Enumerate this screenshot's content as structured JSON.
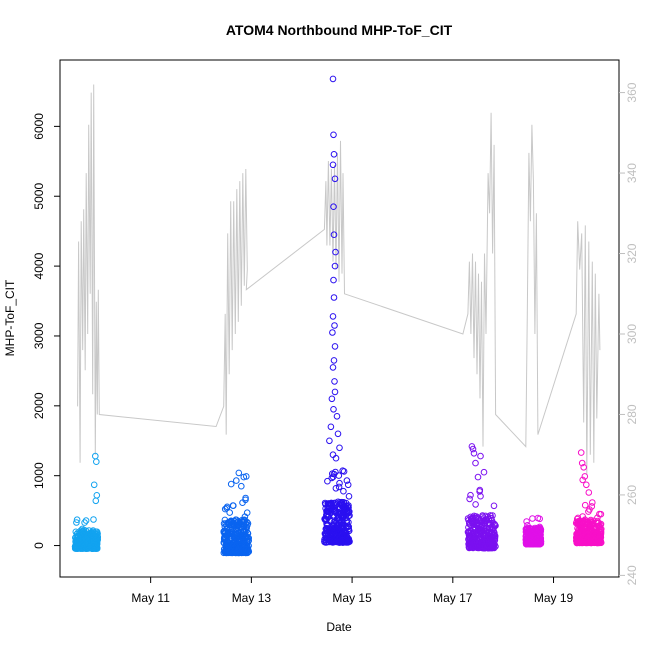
{
  "chart_data": {
    "type": "scatter",
    "title": "ATOM4 Northbound MHP-ToF_CIT",
    "xlabel": "Date",
    "ylabel": "MHP-ToF_CIT",
    "x_tick_labels": [
      "May 11",
      "May 13",
      "May 15",
      "May 17",
      "May 19"
    ],
    "x_tick_days": [
      11,
      13,
      15,
      17,
      19
    ],
    "xlim_days": [
      9.2,
      20.3
    ],
    "ylim": [
      -450,
      6950
    ],
    "y_ticks": [
      0,
      1000,
      2000,
      3000,
      4000,
      5000,
      6000
    ],
    "y2lim": [
      239.6,
      368.1
    ],
    "y2_ticks": [
      240,
      260,
      280,
      300,
      320,
      340,
      360
    ],
    "scatter_groups": [
      {
        "day_start": 9.5,
        "day_end": 9.95,
        "color": "#12a3f0",
        "y_min": -90,
        "y_max": 420,
        "outliers": [
          [
            9.9,
            1280
          ],
          [
            9.92,
            1200
          ],
          [
            9.88,
            870
          ],
          [
            9.93,
            720
          ],
          [
            9.91,
            640
          ]
        ]
      },
      {
        "day_start": 12.45,
        "day_end": 12.95,
        "color": "#0a64f0",
        "y_min": -190,
        "y_max": 760,
        "outliers": [
          [
            12.75,
            1040
          ],
          [
            12.9,
            990
          ],
          [
            12.85,
            980
          ],
          [
            12.7,
            930
          ],
          [
            12.6,
            880
          ],
          [
            12.8,
            850
          ]
        ]
      },
      {
        "day_start": 14.45,
        "day_end": 14.95,
        "color": "#2a10f0",
        "y_min": -60,
        "y_max": 1100,
        "outliers": [
          [
            14.62,
            6680
          ],
          [
            14.63,
            5880
          ],
          [
            14.64,
            5600
          ],
          [
            14.62,
            5450
          ],
          [
            14.66,
            5250
          ],
          [
            14.63,
            4850
          ],
          [
            14.64,
            4450
          ],
          [
            14.67,
            4200
          ],
          [
            14.66,
            4000
          ],
          [
            14.63,
            3800
          ],
          [
            14.64,
            3550
          ],
          [
            14.62,
            3280
          ],
          [
            14.65,
            3150
          ],
          [
            14.61,
            3050
          ],
          [
            14.66,
            2850
          ],
          [
            14.64,
            2650
          ],
          [
            14.62,
            2550
          ],
          [
            14.65,
            2350
          ],
          [
            14.66,
            2200
          ],
          [
            14.6,
            2100
          ],
          [
            14.63,
            1950
          ],
          [
            14.7,
            1850
          ],
          [
            14.58,
            1700
          ],
          [
            14.72,
            1600
          ],
          [
            14.55,
            1500
          ],
          [
            14.75,
            1400
          ],
          [
            14.62,
            1300
          ],
          [
            14.68,
            1250
          ]
        ]
      },
      {
        "day_start": 17.3,
        "day_end": 17.85,
        "color": "#7b10f0",
        "y_min": -120,
        "y_max": 800,
        "outliers": [
          [
            17.38,
            1420
          ],
          [
            17.4,
            1380
          ],
          [
            17.42,
            1320
          ],
          [
            17.55,
            1280
          ],
          [
            17.45,
            1180
          ],
          [
            17.62,
            1050
          ],
          [
            17.5,
            980
          ]
        ]
      },
      {
        "day_start": 18.45,
        "day_end": 18.75,
        "color": "#e010e8",
        "y_min": -20,
        "y_max": 440,
        "outliers": []
      },
      {
        "day_start": 19.45,
        "day_end": 19.95,
        "color": "#f810c8",
        "y_min": -20,
        "y_max": 620,
        "outliers": [
          [
            19.55,
            1330
          ],
          [
            19.57,
            1180
          ],
          [
            19.6,
            1120
          ],
          [
            19.62,
            990
          ],
          [
            19.58,
            940
          ],
          [
            19.65,
            870
          ],
          [
            19.7,
            760
          ]
        ]
      }
    ],
    "secondary_line": {
      "color": "#c8c8c8",
      "axis": "right",
      "points": [
        [
          9.55,
          282
        ],
        [
          9.57,
          323
        ],
        [
          9.6,
          268
        ],
        [
          9.62,
          328
        ],
        [
          9.65,
          296
        ],
        [
          9.67,
          331
        ],
        [
          9.7,
          291
        ],
        [
          9.72,
          340
        ],
        [
          9.75,
          300
        ],
        [
          9.77,
          352
        ],
        [
          9.8,
          310
        ],
        [
          9.82,
          360
        ],
        [
          9.85,
          285
        ],
        [
          9.87,
          362
        ],
        [
          9.9,
          270
        ],
        [
          9.92,
          308
        ],
        [
          9.94,
          280
        ],
        [
          9.96,
          311
        ],
        [
          9.98,
          280
        ],
        [
          12.3,
          277
        ],
        [
          12.45,
          282
        ],
        [
          12.48,
          305
        ],
        [
          12.5,
          275
        ],
        [
          12.53,
          325
        ],
        [
          12.56,
          290
        ],
        [
          12.59,
          333
        ],
        [
          12.62,
          296
        ],
        [
          12.65,
          333
        ],
        [
          12.68,
          300
        ],
        [
          12.71,
          336
        ],
        [
          12.74,
          303
        ],
        [
          12.77,
          338
        ],
        [
          12.8,
          307
        ],
        [
          12.83,
          340
        ],
        [
          12.86,
          312
        ],
        [
          12.89,
          341
        ],
        [
          12.92,
          316
        ],
        [
          12.9,
          311
        ],
        [
          14.45,
          326
        ],
        [
          14.48,
          338
        ],
        [
          14.5,
          322
        ],
        [
          14.53,
          343
        ],
        [
          14.56,
          322
        ],
        [
          14.59,
          341
        ],
        [
          14.62,
          318
        ],
        [
          14.65,
          342
        ],
        [
          14.68,
          316
        ],
        [
          14.71,
          345
        ],
        [
          14.74,
          313
        ],
        [
          14.77,
          348
        ],
        [
          14.8,
          315
        ],
        [
          14.82,
          340
        ],
        [
          14.85,
          310
        ],
        [
          17.2,
          300
        ],
        [
          17.3,
          305
        ],
        [
          17.33,
          318
        ],
        [
          17.36,
          300
        ],
        [
          17.39,
          320
        ],
        [
          17.42,
          294
        ],
        [
          17.45,
          318
        ],
        [
          17.48,
          290
        ],
        [
          17.51,
          315
        ],
        [
          17.54,
          284
        ],
        [
          17.57,
          313
        ],
        [
          17.6,
          272
        ],
        [
          17.63,
          320
        ],
        [
          17.66,
          300
        ],
        [
          17.7,
          340
        ],
        [
          17.73,
          330
        ],
        [
          17.76,
          355
        ],
        [
          17.79,
          320
        ],
        [
          17.82,
          347
        ],
        [
          17.85,
          280
        ],
        [
          18.45,
          272
        ],
        [
          18.48,
          305
        ],
        [
          18.51,
          345
        ],
        [
          18.54,
          328
        ],
        [
          18.57,
          352
        ],
        [
          18.6,
          338
        ],
        [
          18.63,
          300
        ],
        [
          18.66,
          330
        ],
        [
          18.69,
          275
        ],
        [
          19.45,
          305
        ],
        [
          19.48,
          328
        ],
        [
          19.52,
          316
        ],
        [
          19.56,
          325
        ],
        [
          19.6,
          278
        ],
        [
          19.63,
          327
        ],
        [
          19.66,
          265
        ],
        [
          19.7,
          323
        ],
        [
          19.73,
          270
        ],
        [
          19.77,
          318
        ],
        [
          19.8,
          268
        ],
        [
          19.83,
          315
        ],
        [
          19.86,
          279
        ],
        [
          19.9,
          310
        ],
        [
          19.92,
          296
        ]
      ]
    }
  }
}
